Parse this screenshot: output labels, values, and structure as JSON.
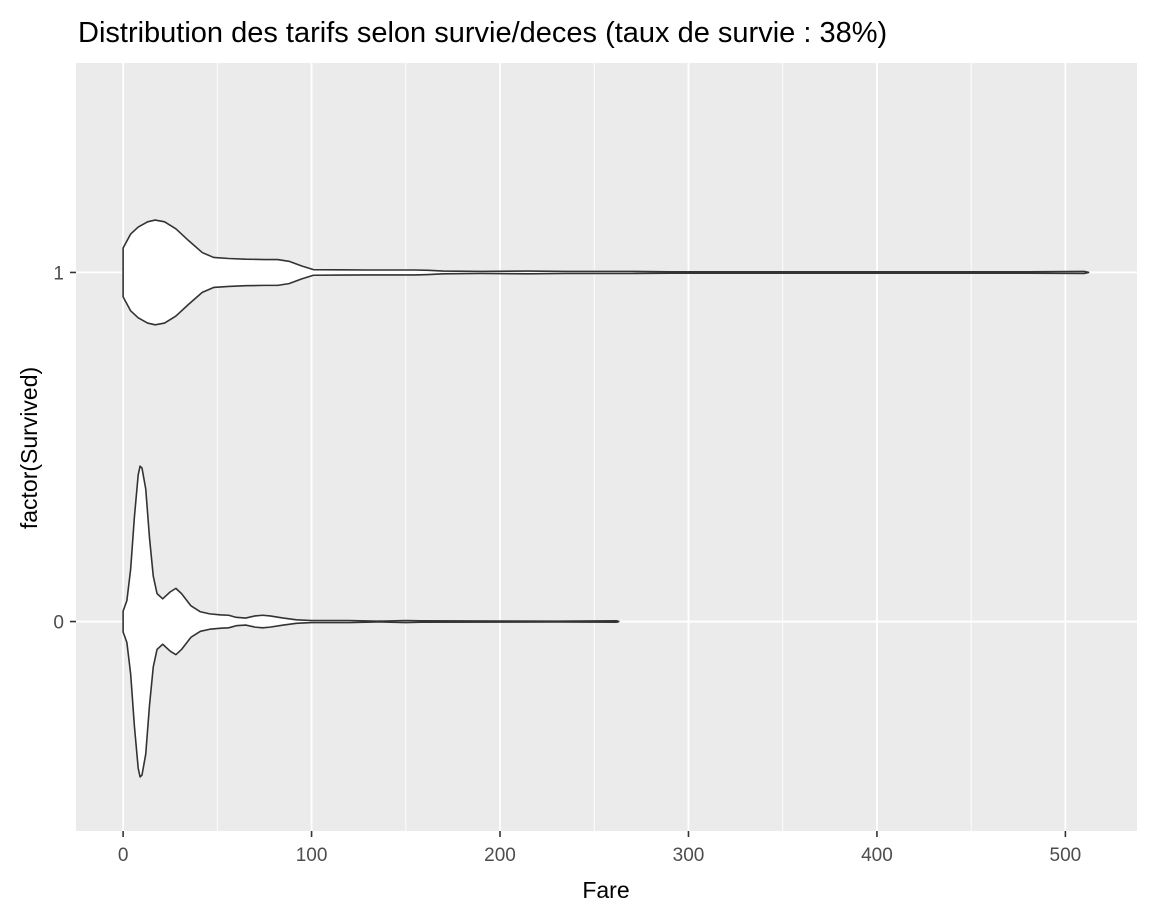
{
  "chart_data": {
    "type": "violin",
    "orientation": "horizontal",
    "title": "Distribution des tarifs selon survie/deces (taux de survie : 38%)",
    "xlabel": "Fare",
    "ylabel": "factor(Survived)",
    "xlim": [
      -25,
      538
    ],
    "ylim": [
      -0.6,
      1.6
    ],
    "x_ticks": [
      0,
      100,
      200,
      300,
      400,
      500
    ],
    "x_tick_labels": [
      "0",
      "100",
      "200",
      "300",
      "400",
      "500"
    ],
    "y_categories": [
      "0",
      "1"
    ],
    "grid": true,
    "panel_background": "#ebebeb",
    "grid_color": "#ffffff",
    "outline_color": "#333333",
    "fill_color": "#ffffff",
    "series": [
      {
        "category": "1",
        "fare_range": [
          0,
          512.3
        ],
        "profile": [
          [
            0,
            0.07
          ],
          [
            4,
            0.11
          ],
          [
            8,
            0.13
          ],
          [
            13,
            0.145
          ],
          [
            17,
            0.15
          ],
          [
            22,
            0.145
          ],
          [
            28,
            0.125
          ],
          [
            35,
            0.09
          ],
          [
            42,
            0.057
          ],
          [
            48,
            0.043
          ],
          [
            56,
            0.04
          ],
          [
            65,
            0.038
          ],
          [
            75,
            0.037
          ],
          [
            82,
            0.037
          ],
          [
            88,
            0.032
          ],
          [
            95,
            0.018
          ],
          [
            101,
            0.008
          ],
          [
            115,
            0.0075
          ],
          [
            130,
            0.007
          ],
          [
            155,
            0.007
          ],
          [
            162,
            0.006
          ],
          [
            170,
            0.004
          ],
          [
            190,
            0.003
          ],
          [
            215,
            0.004
          ],
          [
            235,
            0.003
          ],
          [
            270,
            0.003
          ],
          [
            290,
            0.002
          ],
          [
            350,
            0.002
          ],
          [
            480,
            0.002
          ],
          [
            510,
            0.003
          ],
          [
            512.3,
            0
          ]
        ]
      },
      {
        "category": "0",
        "fare_range": [
          0,
          263
        ],
        "profile": [
          [
            0,
            0.03
          ],
          [
            2,
            0.06
          ],
          [
            4,
            0.15
          ],
          [
            6,
            0.3
          ],
          [
            8,
            0.42
          ],
          [
            9,
            0.445
          ],
          [
            10,
            0.44
          ],
          [
            12,
            0.38
          ],
          [
            14,
            0.24
          ],
          [
            16,
            0.13
          ],
          [
            18,
            0.08
          ],
          [
            21,
            0.065
          ],
          [
            25,
            0.085
          ],
          [
            28,
            0.095
          ],
          [
            31,
            0.08
          ],
          [
            36,
            0.045
          ],
          [
            41,
            0.028
          ],
          [
            46,
            0.022
          ],
          [
            52,
            0.019
          ],
          [
            56,
            0.018
          ],
          [
            60,
            0.012
          ],
          [
            65,
            0.01
          ],
          [
            70,
            0.016
          ],
          [
            74,
            0.018
          ],
          [
            78,
            0.016
          ],
          [
            85,
            0.01
          ],
          [
            92,
            0.005
          ],
          [
            100,
            0.003
          ],
          [
            120,
            0.003
          ],
          [
            135,
            0.001
          ],
          [
            150,
            0.003
          ],
          [
            158,
            0.002
          ],
          [
            200,
            0.0015
          ],
          [
            230,
            0.001
          ],
          [
            262,
            0.002
          ],
          [
            263,
            0
          ]
        ]
      }
    ]
  }
}
